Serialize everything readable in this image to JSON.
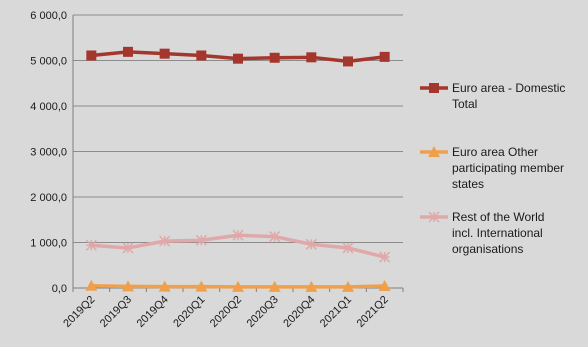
{
  "chart_data": {
    "type": "line",
    "categories": [
      "2019Q2",
      "2019Q3",
      "2019Q4",
      "2020Q1",
      "2020Q2",
      "2020Q3",
      "2020Q4",
      "2021Q1",
      "2021Q2"
    ],
    "ylim": [
      0,
      6000
    ],
    "yticks": [
      0,
      1000,
      2000,
      3000,
      4000,
      5000,
      6000
    ],
    "ytick_labels": [
      "0,0",
      "1 000,0",
      "2 000,0",
      "3 000,0",
      "4 000,0",
      "5 000,0",
      "6 000,0"
    ],
    "grid": true,
    "legend_position": "right",
    "series": [
      {
        "name": "Euro area - Domestic Total",
        "legend_lines": [
          "Euro area - Domestic",
          "Total"
        ],
        "color": "#a5362d",
        "marker": "square",
        "values": [
          5110,
          5190,
          5150,
          5110,
          5040,
          5060,
          5070,
          4980,
          5080
        ]
      },
      {
        "name": "Euro area Other participating member states",
        "legend_lines": [
          "Euro area Other",
          "participating member",
          "states"
        ],
        "color": "#f0a04b",
        "marker": "triangle",
        "values": [
          50,
          35,
          30,
          30,
          25,
          25,
          25,
          25,
          45
        ]
      },
      {
        "name": "Rest of the World incl. International organisations",
        "legend_lines": [
          "Rest of the World",
          "incl. International",
          "organisations"
        ],
        "color": "#e0a8a8",
        "marker": "star",
        "values": [
          940,
          880,
          1030,
          1050,
          1160,
          1130,
          960,
          880,
          680
        ]
      }
    ]
  }
}
